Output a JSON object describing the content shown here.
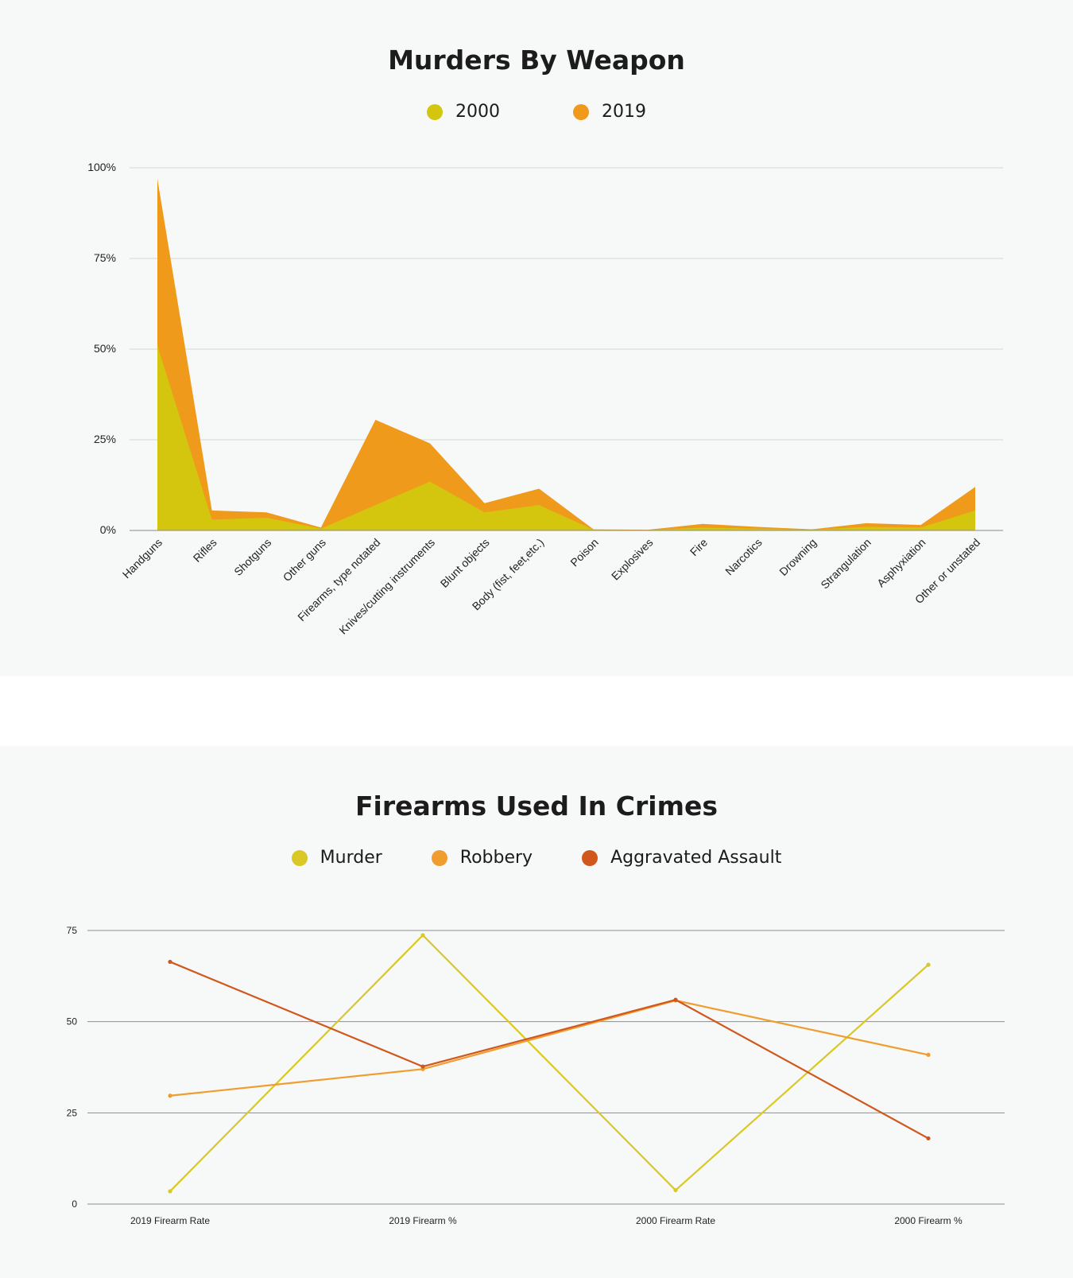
{
  "chart_data": [
    {
      "type": "area",
      "title": "Murders By Weapon",
      "legend_position": "top-center",
      "grid": true,
      "ylim": [
        0,
        100
      ],
      "y_ticks": [
        "0%",
        "25%",
        "50%",
        "75%",
        "100%"
      ],
      "y_tick_values": [
        0,
        25,
        50,
        75,
        100
      ],
      "categories": [
        "Handguns",
        "Rifles",
        "Shotguns",
        "Other guns",
        "Firearms, type notated",
        "Knives/cutting instruments",
        "Blunt objects",
        "Body (fist, feet,etc.)",
        "Poison",
        "Explosives",
        "Fire",
        "Narcotics",
        "Drowning",
        "Strangulation",
        "Asphyxiation",
        "Other or unstated"
      ],
      "stacked": true,
      "series": [
        {
          "name": "2000",
          "color": "#d4c60f",
          "values": [
            51,
            3,
            3.5,
            0.5,
            7,
            13.5,
            5,
            7,
            0.2,
            0.1,
            0.8,
            0.5,
            0.2,
            1,
            0.8,
            5.5
          ]
        },
        {
          "name": "2019",
          "color": "#f09a1c",
          "values": [
            46,
            2.5,
            1.5,
            0.3,
            23.5,
            10.5,
            2.5,
            4.5,
            0.1,
            0.1,
            1,
            0.5,
            0.1,
            1,
            0.7,
            6.5
          ]
        }
      ]
    },
    {
      "type": "line",
      "title": "Firearms Used In Crimes",
      "legend_position": "top-center",
      "grid": true,
      "ylim": [
        0,
        75
      ],
      "y_ticks": [
        "0",
        "25",
        "50",
        "75"
      ],
      "y_tick_values": [
        0,
        25,
        50,
        75
      ],
      "categories": [
        "2019 Firearm Rate",
        "2019 Firearm %",
        "2000 Firearm Rate",
        "2000 Firearm %"
      ],
      "series": [
        {
          "name": "Murder",
          "color": "#d9c825",
          "values": [
            3.5,
            73.7,
            3.8,
            65.6
          ]
        },
        {
          "name": "Robbery",
          "color": "#ef9d2e",
          "values": [
            29.7,
            37,
            55.8,
            40.9
          ]
        },
        {
          "name": "Aggravated Assault",
          "color": "#d0581d",
          "values": [
            66.4,
            37.7,
            56,
            18
          ]
        }
      ]
    }
  ]
}
